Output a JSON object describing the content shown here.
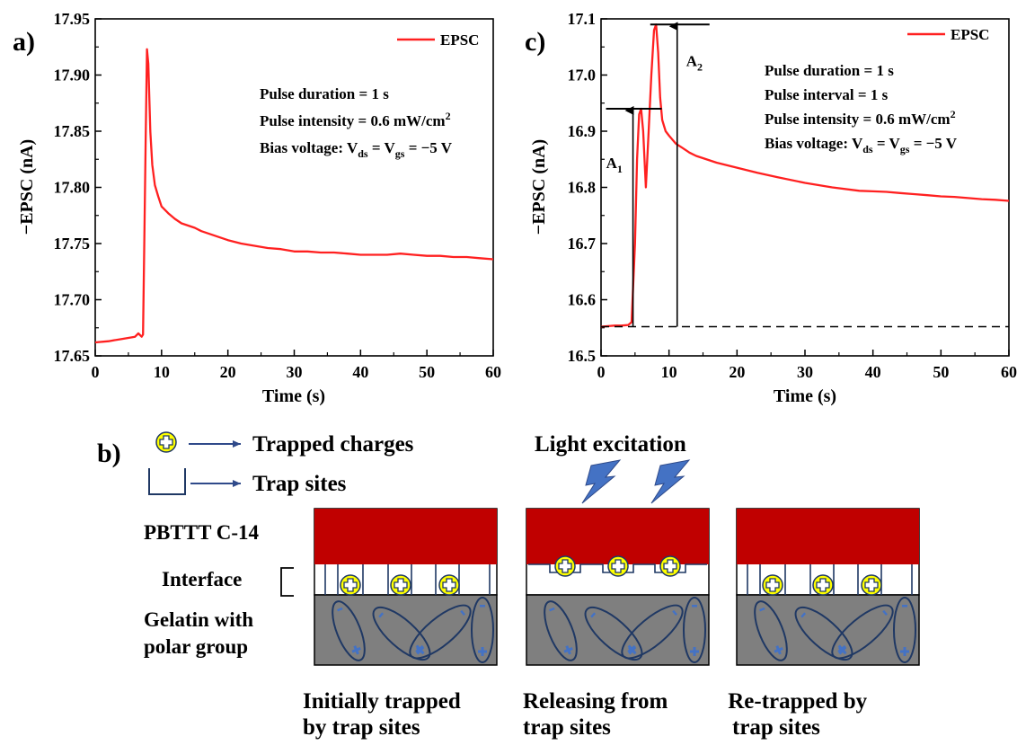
{
  "panels": {
    "a": "a)",
    "b": "b)",
    "c": "c)"
  },
  "chart_data": [
    {
      "panel": "a)",
      "type": "line",
      "xlabel": "Time (s)",
      "ylabel": "−EPSC (nA)",
      "xlim": [
        0,
        60
      ],
      "ylim": [
        17.65,
        17.95
      ],
      "xticks": [
        0,
        10,
        20,
        30,
        40,
        50,
        60
      ],
      "yticks": [
        "17.65",
        "17.70",
        "17.75",
        "17.80",
        "17.85",
        "17.90",
        "17.95"
      ],
      "color": "#ff2020",
      "series": [
        {
          "name": "EPSC",
          "x": [
            0,
            2,
            4,
            5,
            6,
            6.5,
            7,
            7.2,
            7.4,
            7.6,
            7.8,
            8.0,
            8.3,
            8.6,
            9,
            9.5,
            10,
            11,
            12,
            13,
            14,
            15,
            16,
            18,
            20,
            22,
            24,
            26,
            28,
            30,
            32,
            34,
            36,
            38,
            40,
            42,
            44,
            46,
            48,
            50,
            52,
            54,
            56,
            58,
            60
          ],
          "y": [
            17.662,
            17.663,
            17.665,
            17.666,
            17.667,
            17.67,
            17.667,
            17.669,
            17.75,
            17.84,
            17.923,
            17.91,
            17.85,
            17.82,
            17.802,
            17.792,
            17.783,
            17.777,
            17.772,
            17.768,
            17.766,
            17.764,
            17.761,
            17.757,
            17.753,
            17.75,
            17.748,
            17.746,
            17.745,
            17.743,
            17.743,
            17.742,
            17.742,
            17.741,
            17.74,
            17.74,
            17.74,
            17.741,
            17.74,
            17.739,
            17.739,
            17.738,
            17.738,
            17.737,
            17.736
          ]
        }
      ],
      "legend": "EPSC",
      "annotations": {
        "duration": "Pulse duration = 1 s",
        "intensity_prefix": "Pulse intensity = 0.6 mW/cm",
        "intensity_sup": "2",
        "bias_prefix": "Bias voltage: V",
        "ds_sub": "ds",
        "eq1": " = V",
        "gs_sub": "gs",
        "eq2": " = −5 V"
      }
    },
    {
      "panel": "c)",
      "type": "line",
      "xlabel": "Time (s)",
      "ylabel": "−EPSC (nA)",
      "xlim": [
        0,
        60
      ],
      "ylim": [
        16.5,
        17.1
      ],
      "xticks": [
        0,
        10,
        20,
        30,
        40,
        50,
        60
      ],
      "yticks": [
        "16.5",
        "16.6",
        "16.7",
        "16.8",
        "16.9",
        "17.0",
        "17.1"
      ],
      "color": "#ff2020",
      "baseline": 16.552,
      "series": [
        {
          "name": "EPSC",
          "x": [
            0,
            1,
            2,
            3,
            4,
            4.5,
            5,
            5.3,
            5.6,
            5.9,
            6.2,
            6.6,
            7.0,
            7.4,
            7.8,
            8.1,
            8.4,
            8.7,
            9.0,
            9.5,
            10,
            11,
            12,
            13,
            14,
            15,
            17,
            20,
            23,
            26,
            30,
            34,
            38,
            40,
            42,
            44,
            46,
            48,
            50,
            52,
            54,
            56,
            58,
            60
          ],
          "y": [
            16.552,
            16.553,
            16.554,
            16.554,
            16.555,
            16.56,
            16.7,
            16.85,
            16.93,
            16.94,
            16.9,
            16.8,
            16.9,
            17.0,
            17.08,
            17.09,
            17.04,
            16.96,
            16.92,
            16.9,
            16.892,
            16.878,
            16.87,
            16.862,
            16.856,
            16.852,
            16.844,
            16.835,
            16.826,
            16.818,
            16.808,
            16.8,
            16.794,
            16.793,
            16.792,
            16.79,
            16.788,
            16.786,
            16.784,
            16.783,
            16.781,
            16.779,
            16.778,
            16.776
          ]
        }
      ],
      "legend": "EPSC",
      "amplitudes": [
        {
          "label": "A",
          "sub": "1",
          "x": 4.7,
          "top": 16.94
        },
        {
          "label": "A",
          "sub": "2",
          "x": 11.2,
          "top": 17.09
        }
      ],
      "annotations": {
        "duration": "Pulse duration = 1 s",
        "interval": "Pulse interval = 1 s",
        "intensity_prefix": "Pulse intensity = 0.6 mW/cm",
        "intensity_sup": "2",
        "bias_prefix": "Bias voltage: V",
        "ds_sub": "ds",
        "eq1": " = V",
        "gs_sub": "gs",
        "eq2": " = −5 V"
      }
    }
  ],
  "schematic": {
    "legend_trapped": "Trapped charges",
    "legend_traps": "Trap sites",
    "light": "Light excitation",
    "layer_top": "PBTTT C-14",
    "layer_mid": "Interface",
    "layer_bottom_1": "Gelatin with",
    "layer_bottom_2": "polar group",
    "captions": [
      [
        "Initially trapped",
        "by trap sites"
      ],
      [
        "Releasing from",
        "trap sites"
      ],
      [
        " Re-trapped by",
        "trap sites"
      ]
    ],
    "colors": {
      "polymer": "#c00000",
      "gelatin": "#7f7f7f",
      "charge": "#ffff00",
      "dipole_edge": "#1f3864",
      "bolt": "#4472c4",
      "arrow": "#2f4a8a"
    }
  }
}
